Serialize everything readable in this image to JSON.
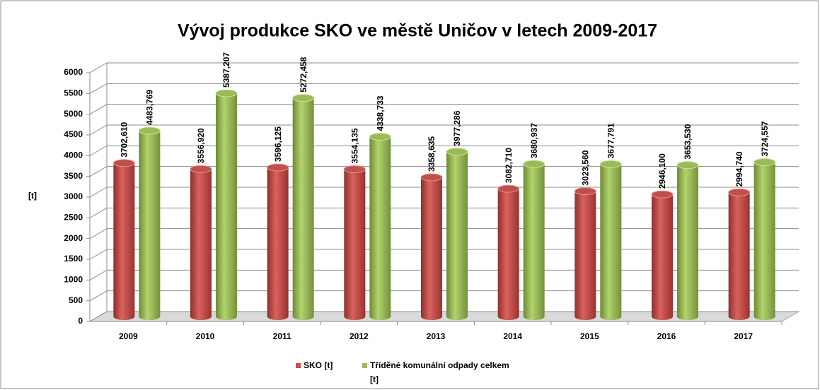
{
  "chart_data": {
    "type": "bar3d",
    "title": "Vývoj produkce SKO ve městě Uničov v letech 2009-2017",
    "y_label": "[t]",
    "categories": [
      "2009",
      "2010",
      "2011",
      "2012",
      "2013",
      "2014",
      "2015",
      "2016",
      "2017"
    ],
    "series": [
      {
        "name": "SKO [t]",
        "color": "#c0504d",
        "values": [
          3702.61,
          3556.92,
          3596.125,
          3554.135,
          3358.635,
          3082.71,
          3023.56,
          2946.1,
          2994.74
        ],
        "value_labels": [
          "3702,610",
          "3556,920",
          "3596,125",
          "3554,135",
          "3358,635",
          "3082,710",
          "3023,560",
          "2946,100",
          "2994,740"
        ]
      },
      {
        "name": "Tříděné komunální odpady celkem [t]",
        "color": "#9bbb59",
        "values": [
          4483.769,
          5387.207,
          5272.458,
          4338.733,
          3977.286,
          3680.937,
          3677.791,
          3653.53,
          3724.557
        ],
        "value_labels": [
          "4483,769",
          "5387,207",
          "5272,458",
          "4338,733",
          "3977,286",
          "3680,937",
          "3677,791",
          "3653,530",
          "3724,557"
        ]
      }
    ],
    "ylim": [
      0,
      6000
    ],
    "yticks": [
      0,
      500,
      1000,
      1500,
      2000,
      2500,
      3000,
      3500,
      4000,
      4500,
      5000,
      5500,
      6000
    ],
    "grid": true,
    "legend": "bottom"
  }
}
